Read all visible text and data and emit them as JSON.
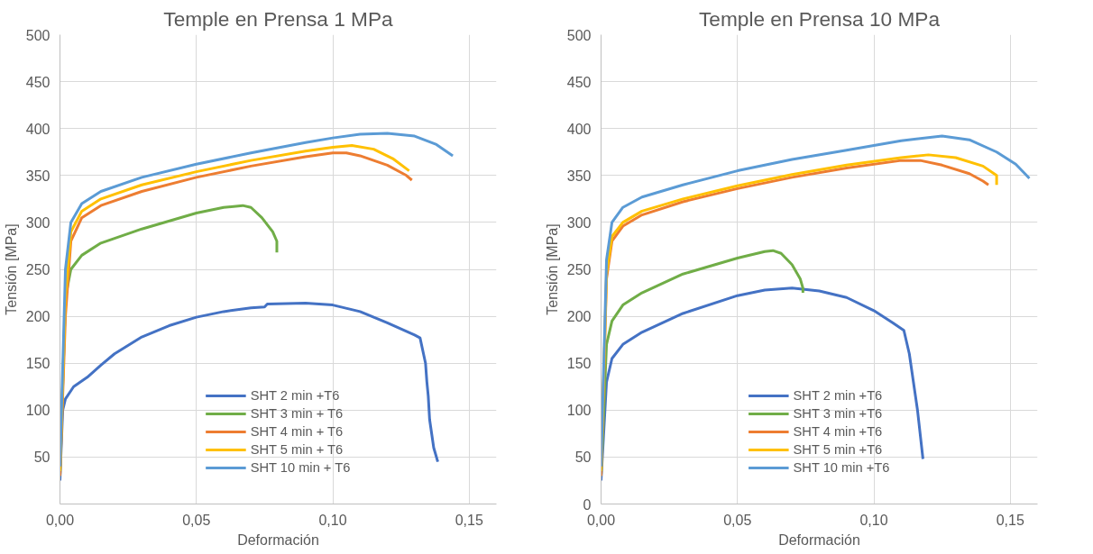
{
  "chart_data": [
    {
      "type": "line",
      "title": "Temple en Prensa 1 MPa",
      "xlabel": "Deformación",
      "ylabel": "Tensión [MPa]",
      "xlim": [
        0,
        0.16
      ],
      "xticks": [
        {
          "value": 0,
          "label": "0,00"
        },
        {
          "value": 0.05,
          "label": "0,05"
        },
        {
          "value": 0.1,
          "label": "0,10"
        },
        {
          "value": 0.15,
          "label": "0,15"
        }
      ],
      "ylim": [
        0,
        500
      ],
      "yticks": [
        50,
        100,
        150,
        200,
        250,
        300,
        350,
        400,
        450,
        500
      ],
      "grid": true,
      "legend": "bottom",
      "marker": "none",
      "line_style": "solid",
      "series": [
        {
          "name": "SHT 2 min +T6",
          "color": "#4472c4",
          "x": [
            0,
            0.001,
            0.002,
            0.005,
            0.01,
            0.015,
            0.02,
            0.03,
            0.04,
            0.05,
            0.06,
            0.07,
            0.075,
            0.076,
            0.09,
            0.1,
            0.11,
            0.12,
            0.13,
            0.132,
            0.134,
            0.1345,
            0.135,
            0.1355,
            0.137,
            0.1385
          ],
          "values": [
            25,
            100,
            112,
            125,
            135,
            148,
            160,
            178,
            190,
            199,
            205,
            209,
            210,
            213,
            214,
            212,
            205,
            193,
            180,
            177,
            150,
            130,
            115,
            90,
            60,
            45
          ]
        },
        {
          "name": "SHT 3 min + T6",
          "color": "#70ad47",
          "x": [
            0,
            0.002,
            0.004,
            0.008,
            0.015,
            0.03,
            0.05,
            0.06,
            0.067,
            0.07,
            0.074,
            0.078,
            0.0795,
            0.0795
          ],
          "values": [
            30,
            220,
            250,
            265,
            278,
            293,
            310,
            316,
            318,
            316,
            305,
            290,
            280,
            268
          ]
        },
        {
          "name": "SHT 4 min + T6",
          "color": "#ed7d31",
          "x": [
            0,
            0.002,
            0.004,
            0.008,
            0.015,
            0.03,
            0.05,
            0.07,
            0.09,
            0.1,
            0.105,
            0.11,
            0.12,
            0.127,
            0.129
          ],
          "values": [
            30,
            200,
            280,
            305,
            318,
            333,
            348,
            360,
            370,
            374,
            374,
            371,
            361,
            350,
            345
          ]
        },
        {
          "name": "SHT 5 min + T6",
          "color": "#ffc000",
          "x": [
            0,
            0.002,
            0.004,
            0.008,
            0.015,
            0.03,
            0.05,
            0.07,
            0.09,
            0.1,
            0.107,
            0.115,
            0.122,
            0.128
          ],
          "values": [
            35,
            220,
            290,
            312,
            325,
            340,
            354,
            366,
            376,
            380,
            382,
            378,
            368,
            355
          ]
        },
        {
          "name": "SHT 10 min + T6",
          "color": "#5b9bd5",
          "x": [
            0,
            0.002,
            0.004,
            0.008,
            0.015,
            0.03,
            0.05,
            0.07,
            0.09,
            0.1,
            0.11,
            0.12,
            0.13,
            0.138,
            0.144
          ],
          "values": [
            40,
            250,
            300,
            320,
            333,
            348,
            362,
            374,
            385,
            390,
            394,
            395,
            392,
            383,
            371
          ]
        }
      ]
    },
    {
      "type": "line",
      "title": "Temple en Prensa 10 MPa",
      "xlabel": "Deformación",
      "ylabel": "Tensión [MPa]",
      "xlim": [
        0,
        0.16
      ],
      "xticks": [
        {
          "value": 0,
          "label": "0,00"
        },
        {
          "value": 0.05,
          "label": "0,05"
        },
        {
          "value": 0.1,
          "label": "0,10"
        },
        {
          "value": 0.15,
          "label": "0,15"
        }
      ],
      "ylim": [
        0,
        500
      ],
      "yticks": [
        0,
        50,
        100,
        150,
        200,
        250,
        300,
        350,
        400,
        450,
        500
      ],
      "grid": true,
      "legend": "bottom",
      "marker": "none",
      "line_style": "solid",
      "series": [
        {
          "name": "SHT 2 min +T6",
          "color": "#4472c4",
          "x": [
            0,
            0.002,
            0.004,
            0.008,
            0.015,
            0.03,
            0.05,
            0.06,
            0.07,
            0.08,
            0.09,
            0.1,
            0.107,
            0.111,
            0.113,
            0.116,
            0.118
          ],
          "values": [
            25,
            130,
            155,
            170,
            183,
            203,
            222,
            228,
            230,
            227,
            220,
            206,
            193,
            185,
            160,
            100,
            48
          ]
        },
        {
          "name": "SHT 3 min +T6",
          "color": "#70ad47",
          "x": [
            0,
            0.002,
            0.004,
            0.008,
            0.015,
            0.03,
            0.05,
            0.06,
            0.063,
            0.066,
            0.07,
            0.073,
            0.074,
            0.074
          ],
          "values": [
            30,
            170,
            195,
            212,
            225,
            245,
            262,
            269,
            270,
            267,
            255,
            240,
            230,
            225
          ]
        },
        {
          "name": "SHT 4 min +T6",
          "color": "#ed7d31",
          "x": [
            0,
            0.002,
            0.004,
            0.008,
            0.015,
            0.03,
            0.05,
            0.07,
            0.09,
            0.11,
            0.117,
            0.125,
            0.135,
            0.14,
            0.142
          ],
          "values": [
            30,
            240,
            280,
            296,
            308,
            322,
            336,
            348,
            358,
            366,
            366,
            361,
            352,
            344,
            340
          ]
        },
        {
          "name": "SHT 5 min +T6",
          "color": "#ffc000",
          "x": [
            0,
            0.002,
            0.004,
            0.008,
            0.015,
            0.03,
            0.05,
            0.07,
            0.09,
            0.11,
            0.12,
            0.13,
            0.14,
            0.145,
            0.145
          ],
          "values": [
            35,
            245,
            285,
            300,
            312,
            325,
            339,
            351,
            361,
            369,
            372,
            369,
            360,
            350,
            340
          ]
        },
        {
          "name": "SHT 10 min +T6",
          "color": "#5b9bd5",
          "x": [
            0,
            0.002,
            0.004,
            0.008,
            0.015,
            0.03,
            0.05,
            0.07,
            0.09,
            0.11,
            0.125,
            0.135,
            0.145,
            0.152,
            0.156,
            0.157
          ],
          "values": [
            40,
            260,
            300,
            316,
            327,
            340,
            355,
            367,
            377,
            387,
            392,
            388,
            375,
            362,
            350,
            347
          ]
        }
      ]
    }
  ]
}
